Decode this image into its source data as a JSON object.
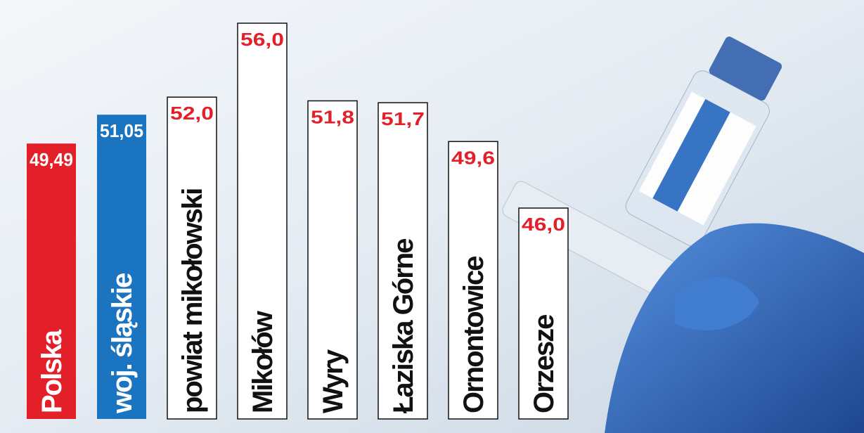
{
  "chart_data": {
    "type": "bar",
    "categories": [
      "Polska",
      "woj. śląskie",
      "powiat mikołowski",
      "Mikołów",
      "Wyry",
      "Łaziska Górne",
      "Ornontowice",
      "Orzesze"
    ],
    "values": [
      49.49,
      51.05,
      52.0,
      56.0,
      51.8,
      51.7,
      49.6,
      46.0
    ],
    "value_labels": [
      "49,49",
      "51,05",
      "52,0",
      "56,0",
      "51,8",
      "51,7",
      "49,6",
      "46,0"
    ],
    "colors": [
      "#e3202a",
      "#1b74bf",
      "#ffffff",
      "#ffffff",
      "#ffffff",
      "#ffffff",
      "#ffffff",
      "#ffffff"
    ]
  }
}
